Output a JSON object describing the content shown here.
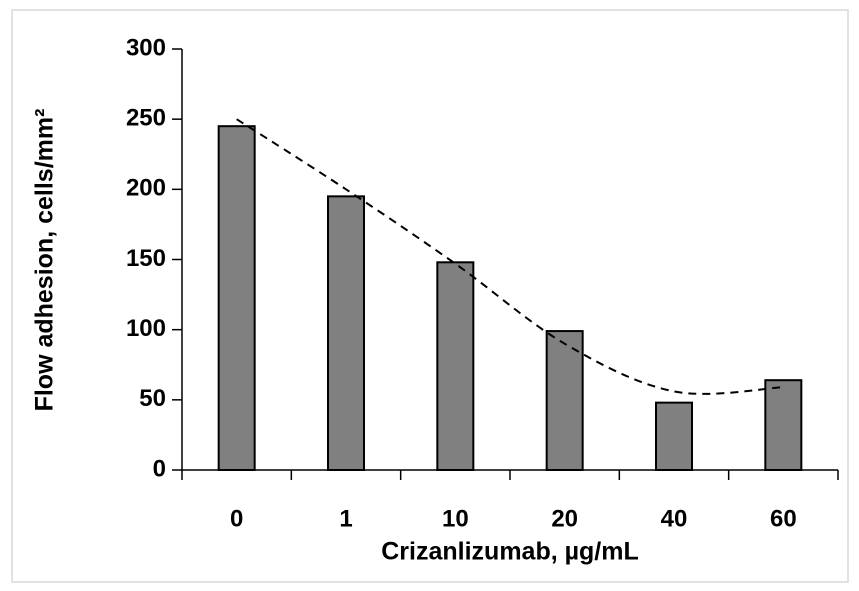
{
  "chart_data": {
    "type": "bar",
    "x_label": "Crizanlizumab, µg/mL",
    "y_label": "Flow adhesion, cells/mm²",
    "categories": [
      "0",
      "1",
      "10",
      "20",
      "40",
      "60"
    ],
    "values": [
      245,
      195,
      148,
      99,
      48,
      64
    ],
    "color": "#808080",
    "trend": {
      "values": [
        250,
        200,
        147,
        90,
        56,
        59
      ],
      "color": "#000000",
      "dashed": true
    },
    "ylim": [
      0,
      300
    ],
    "yticks": [
      0,
      50,
      100,
      150,
      200,
      250,
      300
    ],
    "grid": false
  }
}
